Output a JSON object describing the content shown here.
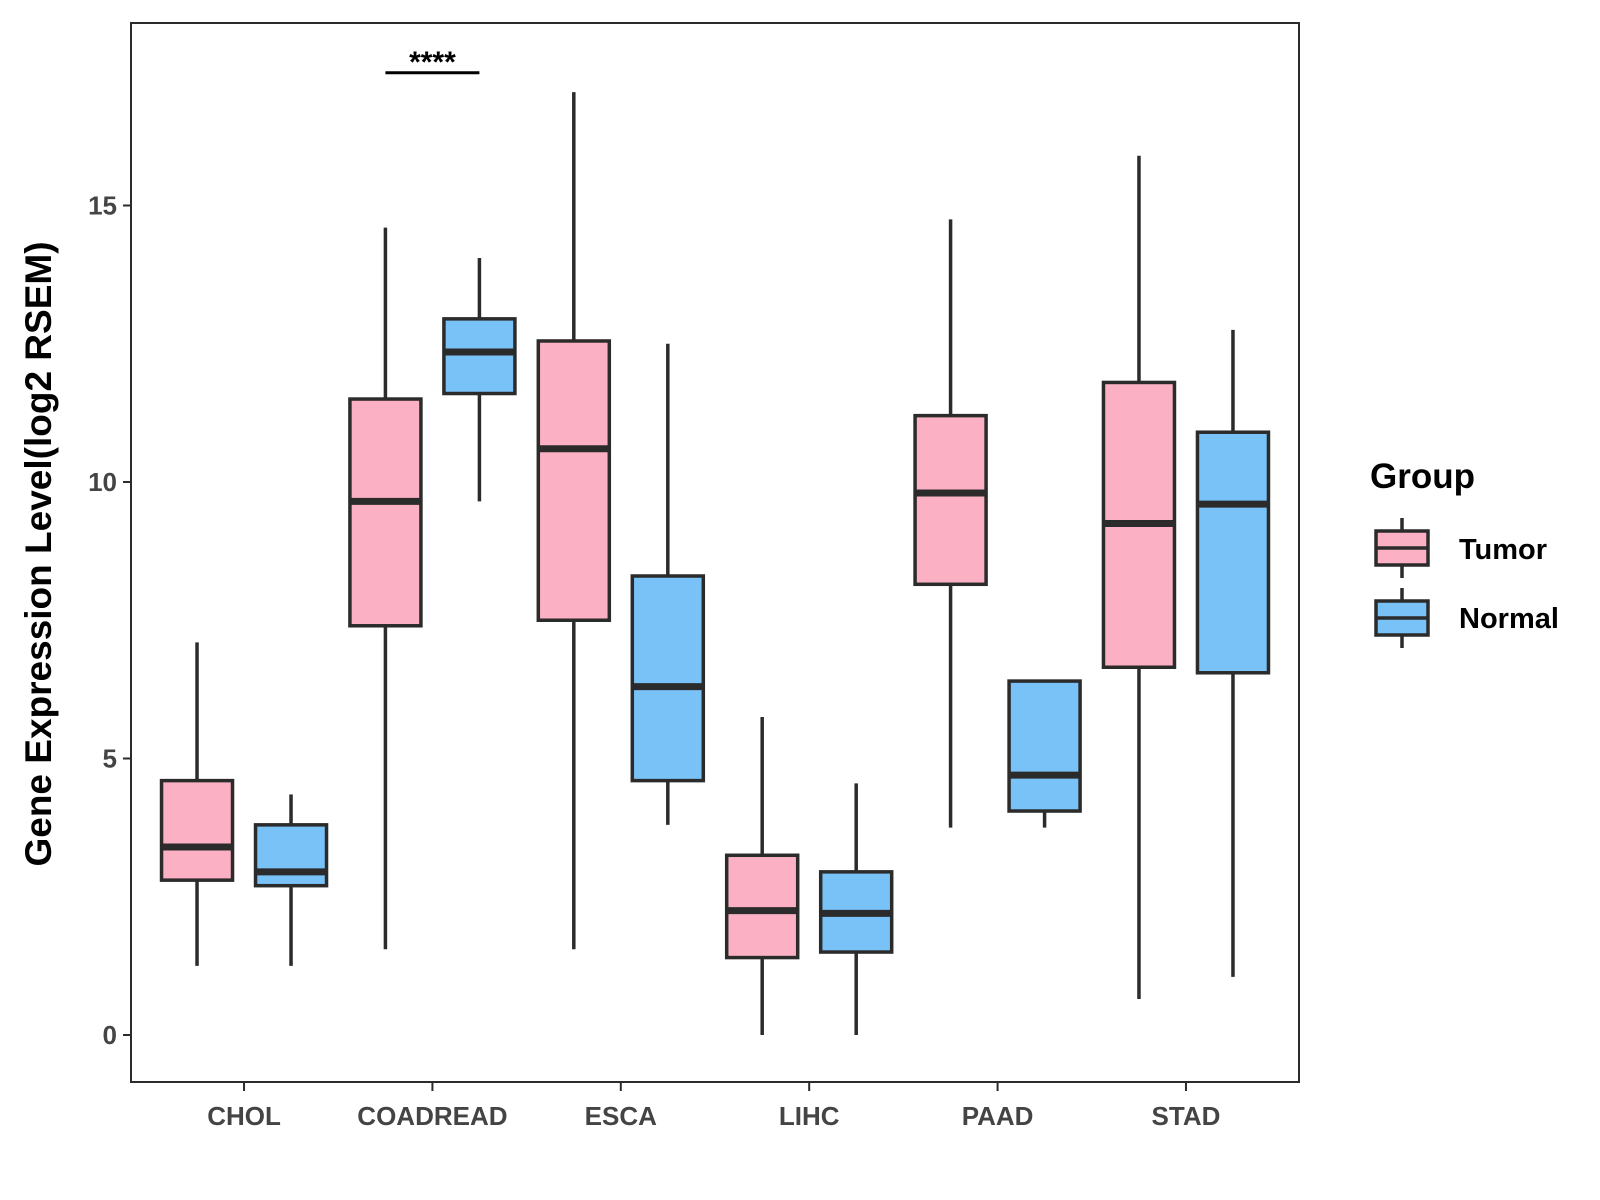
{
  "chart_data": {
    "type": "boxplot",
    "title": "",
    "xlabel": "",
    "ylabel": "Gene Expression Level(log2 RSEM)",
    "ylim": [
      -0.85,
      18.3
    ],
    "yticks": [
      0,
      5,
      10,
      15
    ],
    "grid": false,
    "categories": [
      "CHOL",
      "COADREAD",
      "ESCA",
      "LIHC",
      "PAAD",
      "STAD"
    ],
    "legend": {
      "title": "Group",
      "position": "right",
      "entries": [
        "Tumor",
        "Normal"
      ]
    },
    "colors": {
      "Tumor": "#FBB1C3",
      "Normal": "#79C2F8",
      "outline": "#2b2b2b"
    },
    "series": [
      {
        "name": "Tumor",
        "boxes": [
          {
            "category": "CHOL",
            "min": 1.25,
            "q1": 2.8,
            "median": 3.4,
            "q3": 4.6,
            "max": 7.1
          },
          {
            "category": "COADREAD",
            "min": 1.55,
            "q1": 7.4,
            "median": 9.65,
            "q3": 11.5,
            "max": 14.6
          },
          {
            "category": "ESCA",
            "min": 1.55,
            "q1": 7.5,
            "median": 10.6,
            "q3": 12.55,
            "max": 17.05
          },
          {
            "category": "LIHC",
            "min": 0.0,
            "q1": 1.4,
            "median": 2.25,
            "q3": 3.25,
            "max": 5.75
          },
          {
            "category": "PAAD",
            "min": 3.75,
            "q1": 8.15,
            "median": 9.8,
            "q3": 11.2,
            "max": 14.75
          },
          {
            "category": "STAD",
            "min": 0.65,
            "q1": 6.65,
            "median": 9.25,
            "q3": 11.8,
            "max": 15.9
          }
        ]
      },
      {
        "name": "Normal",
        "boxes": [
          {
            "category": "CHOL",
            "min": 1.25,
            "q1": 2.7,
            "median": 2.95,
            "q3": 3.8,
            "max": 4.35
          },
          {
            "category": "COADREAD",
            "min": 9.65,
            "q1": 11.6,
            "median": 12.35,
            "q3": 12.95,
            "max": 14.05
          },
          {
            "category": "ESCA",
            "min": 3.8,
            "q1": 4.6,
            "median": 6.3,
            "q3": 8.3,
            "max": 12.5
          },
          {
            "category": "LIHC",
            "min": 0.0,
            "q1": 1.5,
            "median": 2.2,
            "q3": 2.95,
            "max": 4.55
          },
          {
            "category": "PAAD",
            "min": 3.75,
            "q1": 4.05,
            "median": 4.7,
            "q3": 6.4,
            "max": 6.4
          },
          {
            "category": "STAD",
            "min": 1.05,
            "q1": 6.55,
            "median": 9.6,
            "q3": 10.9,
            "max": 12.75
          }
        ]
      }
    ],
    "annotations": [
      {
        "category": "COADREAD",
        "text": "****",
        "y": 17.4
      }
    ]
  }
}
